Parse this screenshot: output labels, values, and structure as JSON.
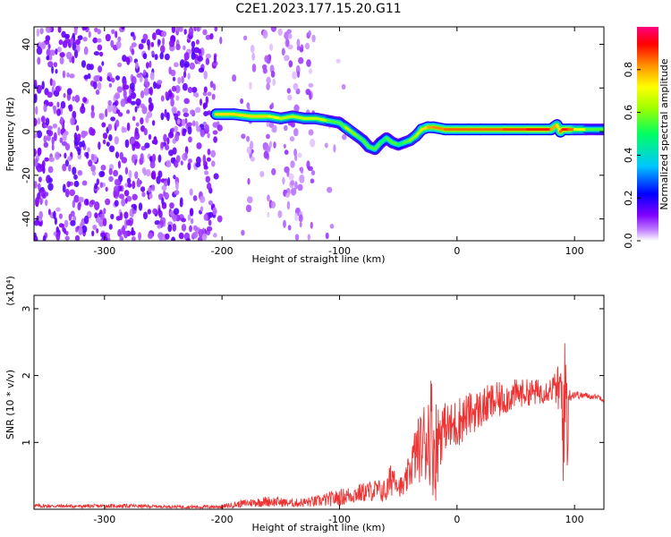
{
  "title": "C2E1.2023.177.15.20.G11",
  "chart_data": [
    {
      "type": "heatmap",
      "title": "C2E1.2023.177.15.20.G11",
      "xlabel": "Height of straight line (km)",
      "ylabel": "Frequency (Hz)",
      "xlim": [
        -360,
        125
      ],
      "ylim": [
        -50,
        48
      ],
      "x_ticks": [
        -300,
        -200,
        -100,
        0,
        100
      ],
      "y_ticks": [
        -40,
        -20,
        0,
        20,
        40
      ],
      "x_tick_labels": [
        "-300",
        "-200",
        "-100",
        "0",
        "100"
      ],
      "y_tick_labels": [
        "-40",
        "-20",
        "0",
        "20",
        "40"
      ],
      "colorbar": {
        "label": "Normalized spectral amplitude",
        "range": [
          0,
          1
        ],
        "ticks": [
          "0.0",
          "0.2",
          "0.4",
          "0.6",
          "0.8"
        ],
        "tick_values": [
          0.0,
          0.2,
          0.4,
          0.6,
          0.8
        ],
        "colors": [
          "#ffffff",
          "#8000ff",
          "#0000ff",
          "#00c8ff",
          "#00ff60",
          "#a0ff00",
          "#ffff00",
          "#ff9000",
          "#ff0000",
          "#ff0080"
        ]
      },
      "ridge": {
        "x": [
          -205,
          -190,
          -175,
          -160,
          -150,
          -140,
          -130,
          -120,
          -110,
          -100,
          -95,
          -90,
          -85,
          -80,
          -75,
          -70,
          -65,
          -60,
          -55,
          -50,
          -45,
          -40,
          -35,
          -30,
          -25,
          -20,
          -10,
          0,
          10,
          20,
          40,
          60,
          80,
          85,
          88,
          90,
          95,
          100,
          110,
          125
        ],
        "y": [
          8,
          8,
          7,
          7,
          6,
          7,
          6,
          6,
          5,
          4,
          2,
          0,
          -2,
          -4,
          -7,
          -8,
          -5,
          -3,
          -5,
          -6,
          -5,
          -4,
          -2,
          1,
          2,
          2,
          1,
          1,
          1,
          1,
          1,
          1,
          1,
          3,
          0,
          1,
          1,
          1,
          1,
          1
        ],
        "amplitude": [
          0.7,
          0.8,
          0.7,
          0.8,
          0.6,
          0.7,
          0.6,
          0.7,
          0.6,
          0.5,
          0.6,
          0.7,
          0.5,
          0.6,
          0.5,
          0.6,
          0.5,
          0.5,
          0.6,
          0.5,
          0.5,
          0.6,
          0.6,
          0.7,
          0.8,
          0.8,
          0.85,
          0.85,
          0.85,
          0.85,
          0.85,
          0.9,
          0.9,
          0.7,
          0.8,
          0.9,
          0.9,
          0.8,
          0.6,
          0.5
        ]
      }
    },
    {
      "type": "line",
      "xlabel": "Height of straight line (km)",
      "ylabel": "SNR (10 * v/v)",
      "y_multiplier_label": "(x10⁴)",
      "xlim": [
        -360,
        125
      ],
      "ylim": [
        0,
        3.2
      ],
      "x_ticks": [
        -300,
        -200,
        -100,
        0,
        100
      ],
      "y_ticks": [
        1,
        2,
        3
      ],
      "x_tick_labels": [
        "-300",
        "-200",
        "-100",
        "0",
        "100"
      ],
      "y_tick_labels": [
        "1",
        "2",
        "3"
      ],
      "series": [
        {
          "color": "#ee3333",
          "x": [
            -360,
            -320,
            -280,
            -250,
            -220,
            -200,
            -180,
            -160,
            -140,
            -120,
            -100,
            -90,
            -80,
            -70,
            -60,
            -55,
            -52,
            -50,
            -45,
            -40,
            -35,
            -30,
            -25,
            -22,
            -20,
            -18,
            -15,
            -10,
            -5,
            0,
            10,
            20,
            30,
            40,
            50,
            60,
            70,
            75,
            80,
            83,
            85,
            87,
            88,
            89,
            90,
            91,
            92,
            93,
            94,
            95,
            97,
            100,
            105,
            110,
            115,
            120,
            125
          ],
          "y": [
            0.05,
            0.05,
            0.05,
            0.04,
            0.03,
            0.04,
            0.08,
            0.1,
            0.08,
            0.1,
            0.15,
            0.2,
            0.25,
            0.3,
            0.25,
            0.5,
            0.8,
            0.5,
            0.3,
            0.6,
            0.9,
            1.0,
            1.1,
            1.5,
            1.3,
            0.8,
            1.2,
            1.3,
            1.2,
            1.3,
            1.4,
            1.45,
            1.6,
            1.65,
            1.7,
            1.75,
            1.75,
            1.8,
            1.8,
            1.85,
            1.85,
            2.0,
            1.4,
            2.2,
            0.6,
            2.6,
            1.3,
            3.1,
            0.3,
            1.7,
            1.7,
            1.75,
            1.7,
            1.7,
            1.7,
            1.7,
            1.65
          ],
          "envelope_max": [
            0.08,
            0.07,
            0.08,
            0.06,
            0.06,
            0.07,
            0.15,
            0.2,
            0.15,
            0.2,
            0.3,
            0.35,
            0.4,
            0.45,
            0.45,
            0.82,
            0.65,
            0.5,
            0.5,
            0.9,
            1.3,
            1.5,
            1.9,
            2.1,
            1.8,
            1.7,
            1.7,
            1.6,
            1.6,
            1.7,
            1.75,
            1.8,
            1.9,
            1.9,
            1.95,
            1.95,
            1.95,
            1.95,
            2.0,
            2.05,
            2.0,
            2.4,
            2.3,
            2.6,
            2.2,
            2.8,
            2.5,
            3.2,
            1.9,
            1.8,
            1.8,
            1.8,
            1.75,
            1.75,
            1.72,
            1.72,
            1.7
          ],
          "envelope_min": [
            0.02,
            0.02,
            0.02,
            0.02,
            0.01,
            0.01,
            0.03,
            0.04,
            0.03,
            0.03,
            0.05,
            0.08,
            0.1,
            0.12,
            0.08,
            0.2,
            0.3,
            0.2,
            0.15,
            0.3,
            0.4,
            0.4,
            0.3,
            0.4,
            0.1,
            0.1,
            0.6,
            0.9,
            0.8,
            0.9,
            1.1,
            1.2,
            1.3,
            1.4,
            1.5,
            1.55,
            1.55,
            1.6,
            1.6,
            1.6,
            1.55,
            1.2,
            0.8,
            0.7,
            0.2,
            0.6,
            0.3,
            1.0,
            0.2,
            1.6,
            1.62,
            1.65,
            1.65,
            1.65,
            1.65,
            1.65,
            1.6
          ]
        }
      ]
    }
  ]
}
